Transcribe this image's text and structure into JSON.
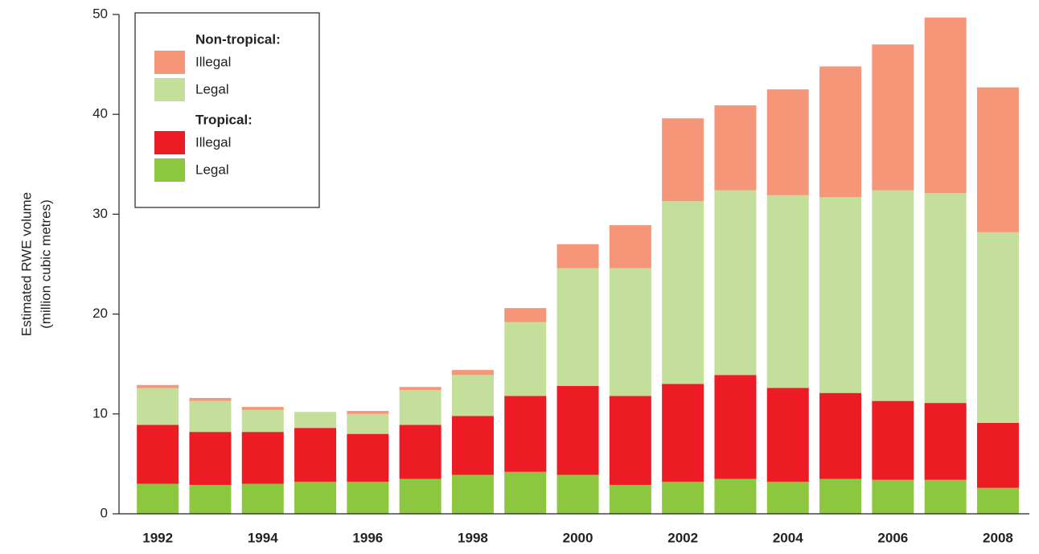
{
  "chart_data": {
    "type": "stacked_bar",
    "y_label": [
      "Estimated RWE volume",
      "(million cubic metres)"
    ],
    "categories": [
      "1992",
      null,
      "1994",
      null,
      "1996",
      null,
      "1998",
      null,
      "2000",
      null,
      "2002",
      null,
      "2004",
      null,
      "2006",
      null,
      "2008"
    ],
    "ylim": [
      0,
      50
    ],
    "yticks": [
      0,
      10,
      20,
      30,
      40,
      50
    ],
    "groups": [
      {
        "name": "Tropical:",
        "series": [
          {
            "name": "Legal",
            "color": "#8dc63f",
            "values": [
              3.0,
              2.9,
              3.0,
              3.2,
              3.2,
              3.5,
              3.9,
              4.2,
              3.9,
              2.9,
              3.2,
              3.5,
              3.2,
              3.5,
              3.4,
              3.4,
              2.6
            ]
          },
          {
            "name": "Illegal",
            "color": "#ed1c24",
            "values": [
              5.9,
              5.3,
              5.2,
              5.4,
              4.8,
              5.4,
              5.9,
              7.6,
              8.9,
              8.9,
              9.8,
              10.4,
              9.4,
              8.6,
              7.9,
              7.7,
              6.5
            ]
          }
        ]
      },
      {
        "name": "Non-tropical:",
        "series": [
          {
            "name": "Legal",
            "color": "#c4df9b",
            "values": [
              3.7,
              3.1,
              2.2,
              1.6,
              2.0,
              3.5,
              4.1,
              7.4,
              11.8,
              12.8,
              18.3,
              18.5,
              19.3,
              19.6,
              21.1,
              21.0,
              19.1
            ]
          },
          {
            "name": "Illegal",
            "color": "#f69679",
            "values": [
              0.3,
              0.3,
              0.3,
              0,
              0.3,
              0.3,
              0.5,
              1.4,
              2.4,
              4.3,
              8.3,
              8.5,
              10.6,
              13.1,
              14.6,
              17.6,
              14.5
            ]
          }
        ]
      }
    ]
  }
}
